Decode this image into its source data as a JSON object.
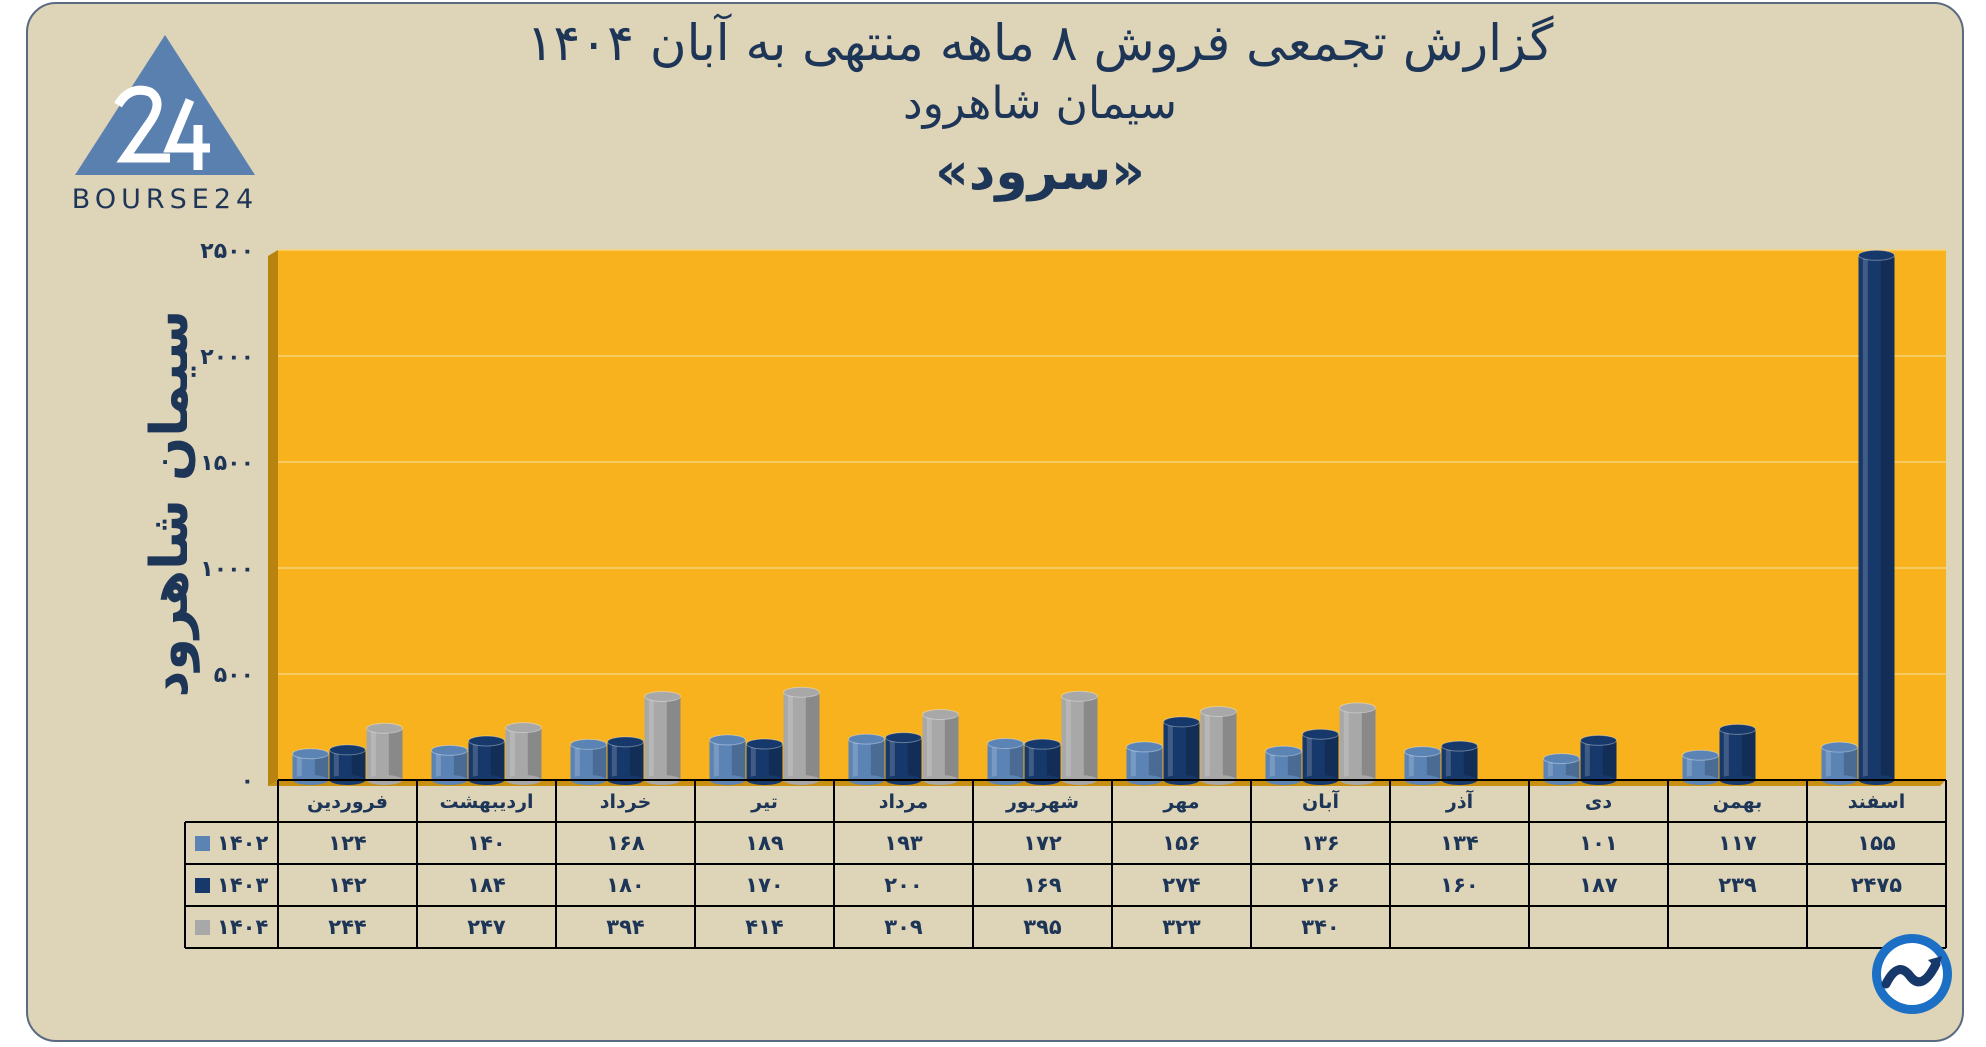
{
  "header": {
    "title_line1": "گزارش تجمعی فروش ۸ ماهه منتهی به آبان ۱۴۰۴",
    "title_line2": "سیمان شاهرود",
    "title_line3": "«سرود»"
  },
  "logo": {
    "text": "BOURSE24"
  },
  "colors": {
    "background": "#ded4b8",
    "plot": "#f7b21d",
    "s1402": "#5b84b5",
    "s1403": "#16386a",
    "s1404": "#a8a8a8",
    "text": "#1d3557"
  },
  "chart_data": {
    "type": "bar",
    "ylabel": "سیمان شاهرود",
    "ylim": [
      0,
      2500
    ],
    "y_ticks": [
      "۰",
      "۵۰۰",
      "۱۰۰۰",
      "۱۵۰۰",
      "۲۰۰۰",
      "۲۵۰۰"
    ],
    "y_tick_values": [
      0,
      500,
      1000,
      1500,
      2000,
      2500
    ],
    "grid": true,
    "legend": "table-left",
    "categories": [
      "فروردین",
      "اردیبهشت",
      "خرداد",
      "تیر",
      "مرداد",
      "شهریور",
      "مهر",
      "آبان",
      "آذر",
      "دی",
      "بهمن",
      "اسفند"
    ],
    "series": [
      {
        "name": "۱۴۰۲",
        "color": "#5b84b5",
        "values": [
          124,
          140,
          168,
          189,
          193,
          172,
          156,
          136,
          134,
          101,
          117,
          155
        ],
        "labels": [
          "۱۲۴",
          "۱۴۰",
          "۱۶۸",
          "۱۸۹",
          "۱۹۳",
          "۱۷۲",
          "۱۵۶",
          "۱۳۶",
          "۱۳۴",
          "۱۰۱",
          "۱۱۷",
          "۱۵۵"
        ]
      },
      {
        "name": "۱۴۰۳",
        "color": "#16386a",
        "values": [
          142,
          184,
          180,
          170,
          200,
          169,
          274,
          216,
          160,
          187,
          239,
          2475
        ],
        "labels": [
          "۱۴۲",
          "۱۸۴",
          "۱۸۰",
          "۱۷۰",
          "۲۰۰",
          "۱۶۹",
          "۲۷۴",
          "۲۱۶",
          "۱۶۰",
          "۱۸۷",
          "۲۳۹",
          "۲۴۷۵"
        ]
      },
      {
        "name": "۱۴۰۴",
        "color": "#a8a8a8",
        "values": [
          244,
          247,
          394,
          414,
          309,
          395,
          323,
          340,
          null,
          null,
          null,
          null
        ],
        "labels": [
          "۲۴۴",
          "۲۴۷",
          "۳۹۴",
          "۴۱۴",
          "۳۰۹",
          "۳۹۵",
          "۳۲۳",
          "۳۴۰",
          "",
          "",
          "",
          ""
        ]
      }
    ]
  }
}
